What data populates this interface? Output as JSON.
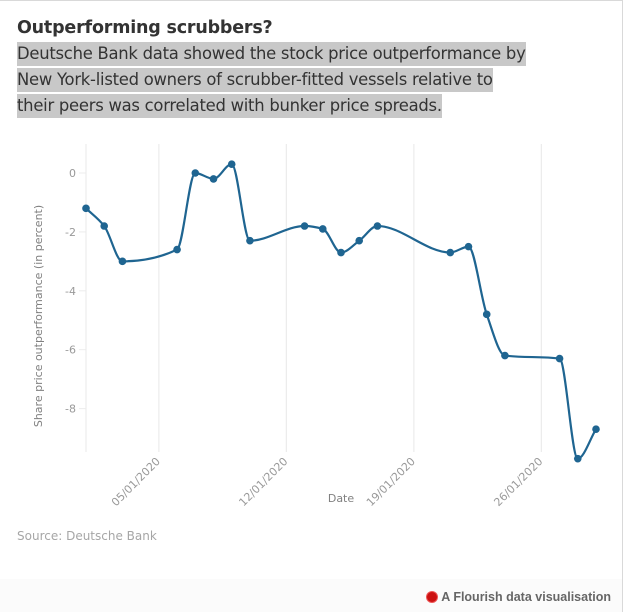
{
  "header": {
    "title": "Outperforming scrubbers?",
    "subtitle_lines": [
      "Deutsche Bank data showed the stock price outperformance by",
      "New York-listed owners of scrubber-fitted vessels relative to",
      "their peers was correlated with bunker price spreads."
    ]
  },
  "source": "Source: Deutsche Bank",
  "footer": {
    "credit": "A Flourish data visualisation",
    "logo_icon": "flourish-logo-icon"
  },
  "colors": {
    "line": "#1f6591",
    "grid": "#ececec",
    "highlight": "#c8c8c8",
    "logo": "#cc1111"
  },
  "chart_data": {
    "type": "line",
    "title": "Outperforming scrubbers?",
    "xlabel": "Date",
    "ylabel": "Share price outperformance (in percent)",
    "x_ticks": [
      "05/01/2020",
      "12/01/2020",
      "19/01/2020",
      "26/01/2020"
    ],
    "y_ticks": [
      0,
      -2,
      -4,
      -6,
      -8
    ],
    "y_tick_labels": [
      "0",
      "-2",
      "-4",
      "-6",
      "-8"
    ],
    "xlim": [
      "01/01/2020",
      "29/01/2020"
    ],
    "ylim": [
      -9.5,
      1
    ],
    "grid": "vertical",
    "series": [
      {
        "name": "Share price outperformance",
        "x": [
          "01/01/2020",
          "02/01/2020",
          "03/01/2020",
          "06/01/2020",
          "07/01/2020",
          "08/01/2020",
          "09/01/2020",
          "10/01/2020",
          "13/01/2020",
          "14/01/2020",
          "15/01/2020",
          "16/01/2020",
          "17/01/2020",
          "21/01/2020",
          "22/01/2020",
          "23/01/2020",
          "24/01/2020",
          "27/01/2020",
          "28/01/2020",
          "29/01/2020"
        ],
        "values": [
          -1.2,
          -1.8,
          -3.0,
          -2.6,
          0.0,
          -0.2,
          0.3,
          -2.3,
          -1.8,
          -1.9,
          -2.7,
          -2.3,
          -1.8,
          -2.7,
          -2.5,
          -4.8,
          -6.2,
          -6.3,
          -9.7,
          -8.7
        ]
      }
    ]
  }
}
